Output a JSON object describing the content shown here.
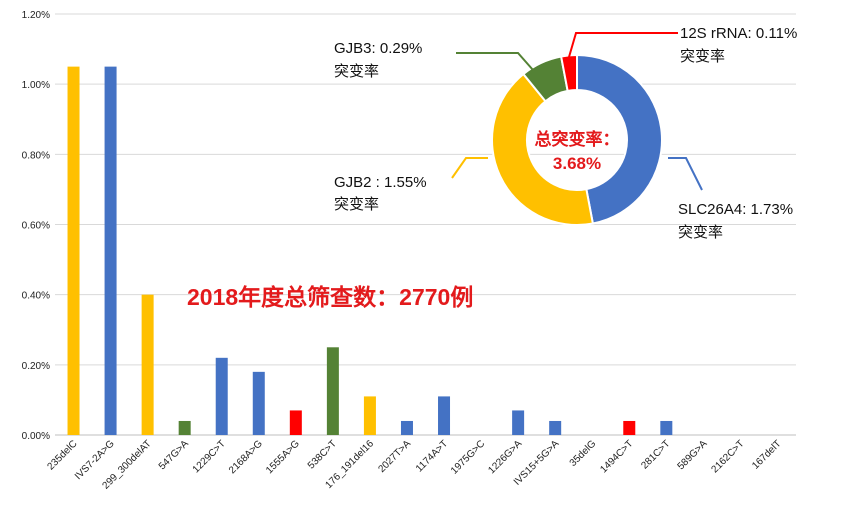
{
  "chart_data": [
    {
      "type": "bar",
      "title": "",
      "xlabel": "",
      "ylabel": "",
      "ylim": [
        0,
        1.2
      ],
      "yticks": [
        "0.00%",
        "0.20%",
        "0.40%",
        "0.60%",
        "0.80%",
        "1.00%",
        "1.20%"
      ],
      "grid": true,
      "categories": [
        "235delC",
        "IVS7-2A>G",
        "299_300delAT",
        "547G>A",
        "1229C>T",
        "2168A>G",
        "1555A>G",
        "538C>T",
        "176_191del16",
        "2027T>A",
        "1174A>T",
        "1975G>C",
        "1226G>A",
        "IVS15+5G>A",
        "35delG",
        "1494C>T",
        "281C>T",
        "589G>A",
        "2162C>T",
        "167delT"
      ],
      "values": [
        1.05,
        1.05,
        0.4,
        0.04,
        0.22,
        0.18,
        0.07,
        0.25,
        0.11,
        0.04,
        0.11,
        0.0,
        0.07,
        0.04,
        0.0,
        0.04,
        0.04,
        0.0,
        0.0,
        0.0
      ],
      "bar_colors": [
        "#ffc000",
        "#4472c4",
        "#ffc000",
        "#548235",
        "#4472c4",
        "#4472c4",
        "#ff0000",
        "#548235",
        "#ffc000",
        "#4472c4",
        "#4472c4",
        "#4472c4",
        "#4472c4",
        "#4472c4",
        "#ffc000",
        "#ff0000",
        "#4472c4",
        "#4472c4",
        "#4472c4",
        "#4472c4"
      ],
      "annotation": "2018年度总筛查数：2770例"
    },
    {
      "type": "pie",
      "style": "donut",
      "center_label": [
        "总突变率：",
        "3.68%"
      ],
      "slices": [
        {
          "label_line1": "SLC26A4: 1.73%",
          "label_line2": "突变率",
          "value": 1.73,
          "color": "#4472c4"
        },
        {
          "label_line1": "GJB2 : 1.55%",
          "label_line2": "突变率",
          "value": 1.55,
          "color": "#ffc000"
        },
        {
          "label_line1": "GJB3: 0.29%",
          "label_line2": "突变率",
          "value": 0.29,
          "color": "#548235"
        },
        {
          "label_line1": "12S rRNA: 0.11%",
          "label_line2": "突变率",
          "value": 0.11,
          "color": "#ff0000"
        }
      ]
    }
  ]
}
